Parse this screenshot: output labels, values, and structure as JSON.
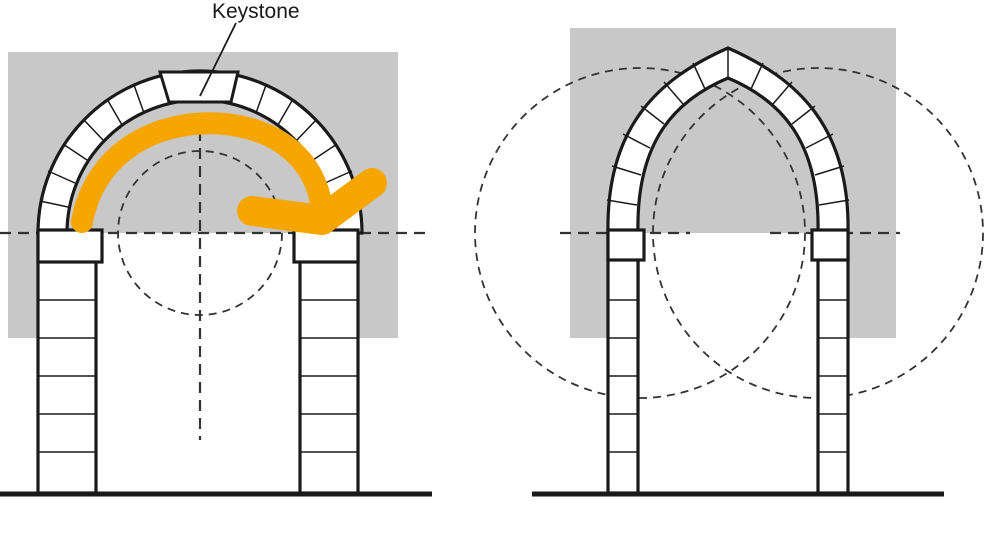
{
  "labels": {
    "keystone": "Keystone"
  },
  "colors": {
    "background": "#ffffff",
    "wall_gray": "#c8c8c8",
    "line": "#1a1a1a",
    "arrow": "#f7a600"
  },
  "diagrams": [
    {
      "name": "round-arch",
      "keystone_arrow": true
    },
    {
      "name": "pointed-arch",
      "keystone_arrow": false
    }
  ]
}
